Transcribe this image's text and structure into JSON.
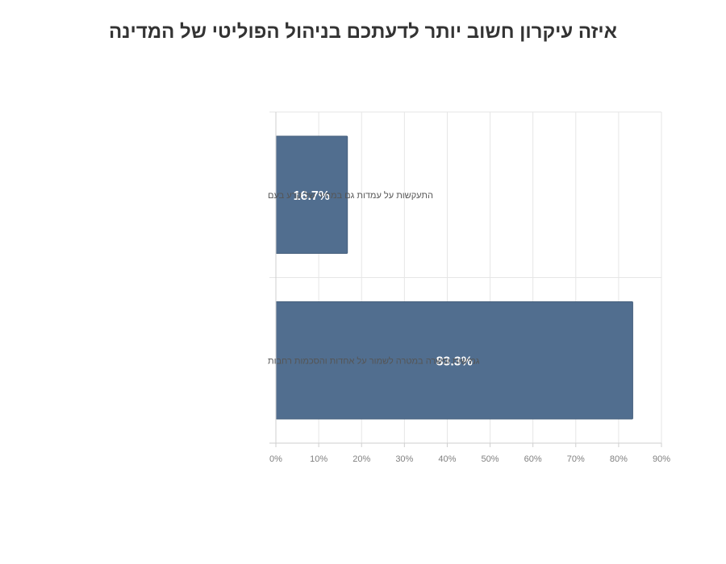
{
  "chart_data": {
    "type": "bar",
    "orientation": "horizontal",
    "title": "איזה עיקרון חשוב יותר לדעתכם בניהול הפוליטי של המדינה",
    "categories": [
      "התעקשות על עמדות גם במחיר של קרע בעם",
      "גמישות ופשרה במטרה לשמור על אחדות והסכמות רחבות"
    ],
    "values": [
      16.7,
      83.3
    ],
    "value_labels": [
      "16.7%",
      "83.3%"
    ],
    "xlim": [
      0,
      90
    ],
    "x_ticks": [
      "0%",
      "10%",
      "20%",
      "30%",
      "40%",
      "50%",
      "60%",
      "70%",
      "80%",
      "90%"
    ],
    "grid": true,
    "legend": "none",
    "bar_color": "#516e8f"
  }
}
